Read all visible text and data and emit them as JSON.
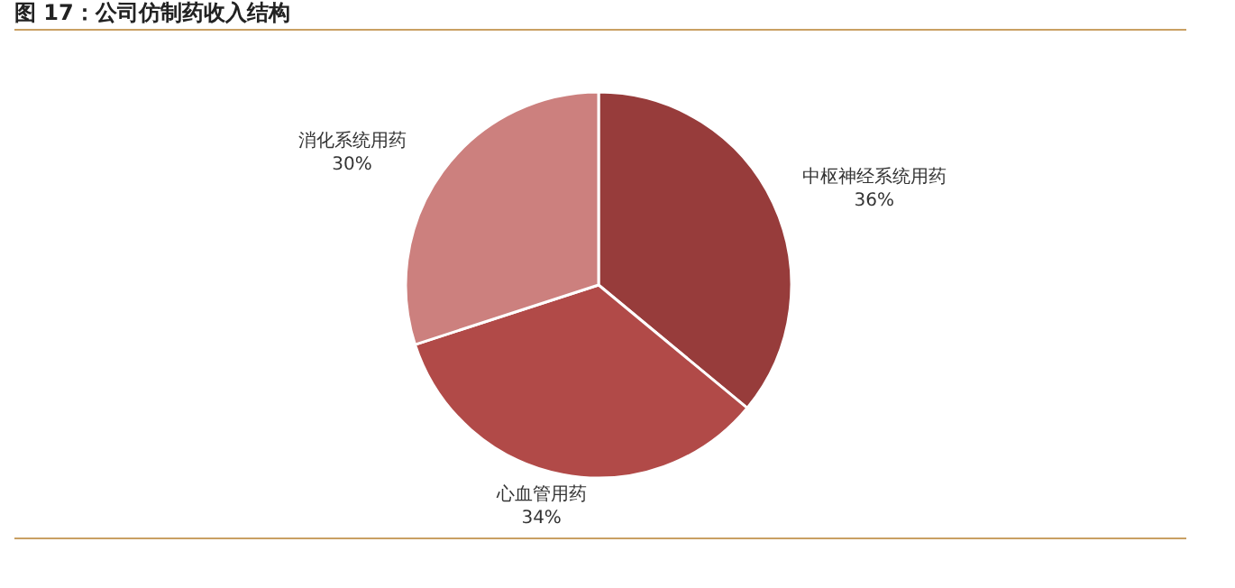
{
  "chart_data": {
    "type": "pie",
    "title": "图 17：公司仿制药收入结构",
    "categories": [
      "中枢神经系统用药",
      "心血管用药",
      "消化系统用药"
    ],
    "values": [
      36,
      34,
      30
    ],
    "colors": [
      "#973c3b",
      "#b14a48",
      "#cc807e"
    ],
    "value_labels": [
      "36%",
      "34%",
      "30%"
    ]
  }
}
